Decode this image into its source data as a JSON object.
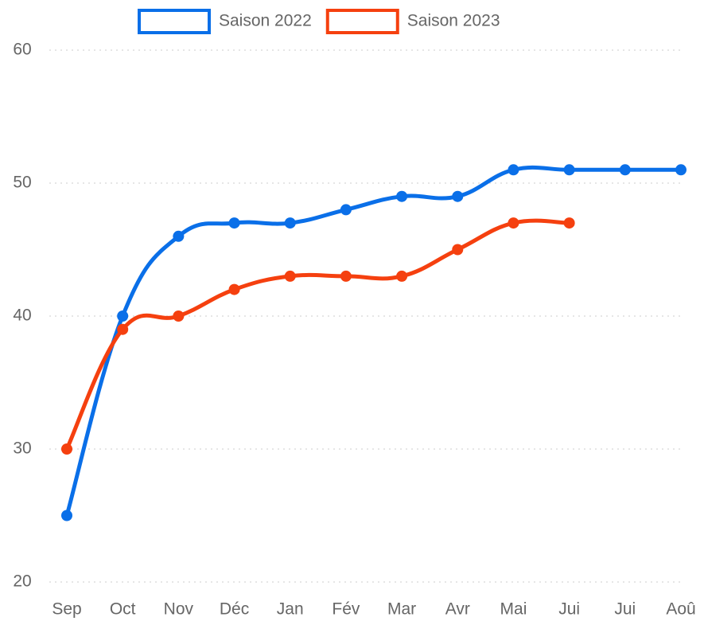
{
  "chart_data": {
    "type": "line",
    "categories": [
      "Sep",
      "Oct",
      "Nov",
      "Déc",
      "Jan",
      "Fév",
      "Mar",
      "Avr",
      "Mai",
      "Jui",
      "Jui",
      "Aoû"
    ],
    "series": [
      {
        "name": "Saison 2022",
        "color": "#0a6fe8",
        "values": [
          25,
          40,
          46,
          47,
          47,
          48,
          49,
          49,
          51,
          51,
          51,
          51
        ]
      },
      {
        "name": "Saison 2023",
        "color": "#f5400f",
        "values": [
          30,
          39,
          40,
          42,
          43,
          43,
          43,
          45,
          47,
          47,
          null,
          null
        ]
      }
    ],
    "ylim": [
      20,
      60
    ],
    "yticks": [
      20,
      30,
      40,
      50,
      60
    ],
    "grid": true,
    "legend": "top"
  }
}
